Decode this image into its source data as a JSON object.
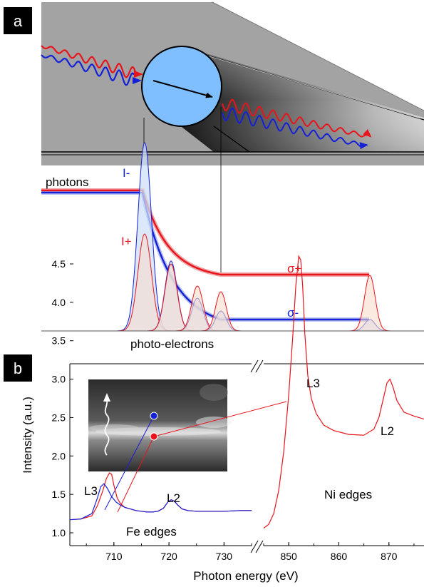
{
  "panel_a": {
    "label": "a",
    "text_photons": "photons",
    "text_I_minus": "I-",
    "text_I_plus": "I+",
    "text_sigma_plus": "σ+",
    "text_sigma_minus": "σ-",
    "text_photo_electrons": "photo-electrons"
  },
  "panel_b": {
    "label": "b",
    "text_L3_fe": "L3",
    "text_L2_fe": "L2",
    "text_fe_edges": "Fe edges",
    "text_L3_ni": "L3",
    "text_L2_ni": "L2",
    "text_ni_edges": "Ni edges"
  },
  "colors": {
    "red": "#e8141c",
    "blue": "#1420d8",
    "grey_plane": "#a3a3a3",
    "disk": "#7fbfff"
  },
  "chart_data": {
    "type": "line",
    "xlabel": "Photon energy (eV)",
    "ylabel": "Intensity (a.u.)",
    "ylim": [
      0.75,
      4.75
    ],
    "y_ticks": [
      "1.0",
      "1.5",
      "2.0",
      "2.5",
      "3.0",
      "3.5",
      "4.0",
      "4.5"
    ],
    "x_ticks_left": [
      "710",
      "720",
      "730"
    ],
    "x_ticks_right": [
      "850",
      "860",
      "870"
    ],
    "xlim_left": [
      702,
      735
    ],
    "xlim_right": [
      845,
      877
    ],
    "axis_break": true,
    "series": [
      {
        "color": "red",
        "x": [
          702,
          704,
          706,
          707,
          708,
          708.6,
          709.2,
          709.6,
          710,
          710.6,
          711.2,
          712,
          713,
          714,
          715,
          716,
          717,
          718,
          719,
          719.8,
          720.4,
          721,
          721.6,
          722.4,
          723.4,
          725,
          727,
          730,
          733,
          735
        ],
        "y": [
          1.17,
          1.18,
          1.22,
          1.35,
          1.55,
          1.7,
          1.78,
          1.76,
          1.62,
          1.45,
          1.38,
          1.33,
          1.31,
          1.29,
          1.28,
          1.27,
          1.27,
          1.28,
          1.32,
          1.4,
          1.43,
          1.41,
          1.36,
          1.31,
          1.29,
          1.28,
          1.28,
          1.28,
          1.29,
          1.29
        ]
      },
      {
        "color": "blue",
        "x": [
          702,
          704,
          706,
          707,
          707.6,
          708.2,
          708.8,
          709.6,
          710.4,
          711.2,
          712,
          713,
          714,
          715,
          716,
          717,
          718,
          719,
          719.8,
          720.4,
          721,
          721.6,
          722.4,
          723.4,
          725,
          727,
          730,
          733,
          735
        ],
        "y": [
          1.17,
          1.18,
          1.25,
          1.45,
          1.6,
          1.64,
          1.58,
          1.47,
          1.4,
          1.36,
          1.33,
          1.31,
          1.29,
          1.28,
          1.27,
          1.27,
          1.28,
          1.32,
          1.4,
          1.43,
          1.41,
          1.36,
          1.31,
          1.29,
          1.28,
          1.28,
          1.28,
          1.29,
          1.29
        ]
      },
      {
        "color": "red",
        "x": [
          845,
          846,
          847,
          848,
          849,
          850,
          850.8,
          851.4,
          852,
          852.4,
          852.8,
          853.2,
          853.8,
          854.5,
          855.5,
          857,
          859,
          862,
          865,
          867,
          868,
          869,
          869.6,
          870.2,
          870.8,
          871.6,
          873,
          875,
          877
        ],
        "y": [
          1.06,
          1.11,
          1.25,
          1.55,
          2.05,
          2.8,
          3.55,
          4.2,
          4.6,
          4.55,
          4.2,
          3.6,
          3.05,
          2.75,
          2.55,
          2.4,
          2.33,
          2.28,
          2.27,
          2.35,
          2.5,
          2.78,
          2.95,
          3.0,
          2.9,
          2.72,
          2.57,
          2.52,
          2.48
        ]
      }
    ]
  }
}
